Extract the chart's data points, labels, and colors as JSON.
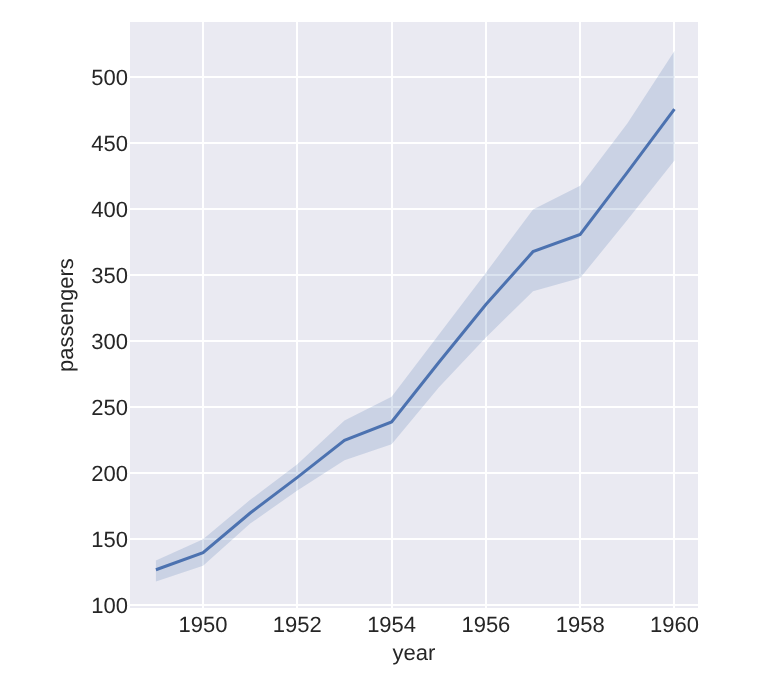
{
  "chart_data": {
    "type": "line",
    "xlabel": "year",
    "ylabel": "passengers",
    "x": [
      1949,
      1950,
      1951,
      1952,
      1953,
      1954,
      1955,
      1956,
      1957,
      1958,
      1959,
      1960
    ],
    "series": [
      {
        "color": "#4c72b0",
        "values": [
          127,
          140,
          170,
          197,
          225,
          239,
          284,
          328,
          368,
          381,
          428,
          476
        ],
        "lower": [
          118,
          130,
          162,
          187,
          210,
          222,
          265,
          303,
          338,
          348,
          392,
          437
        ],
        "upper": [
          134,
          150,
          180,
          207,
          240,
          258,
          305,
          352,
          400,
          418,
          465,
          520
        ]
      }
    ],
    "xlim": [
      1948.45,
      1960.5
    ],
    "xticks": [
      1950,
      1952,
      1954,
      1956,
      1958,
      1960
    ],
    "ylim": [
      98,
      542
    ],
    "yticks": [
      100,
      150,
      200,
      250,
      300,
      350,
      400,
      450,
      500
    ],
    "grid": true,
    "marker": "none",
    "line_style": "solid"
  }
}
